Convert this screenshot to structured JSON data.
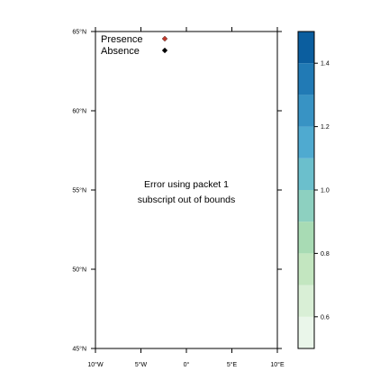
{
  "chart_data": {
    "type": "scatter",
    "xlim": [
      -10,
      10
    ],
    "ylim": [
      45,
      65
    ],
    "x_ticks": [
      {
        "value": -10,
        "label": "10°W"
      },
      {
        "value": -5,
        "label": "5°W"
      },
      {
        "value": 0,
        "label": "0°"
      },
      {
        "value": 5,
        "label": "5°E"
      },
      {
        "value": 10,
        "label": "10°E"
      }
    ],
    "y_ticks": [
      {
        "value": 45,
        "label": "45°N"
      },
      {
        "value": 50,
        "label": "50°N"
      },
      {
        "value": 55,
        "label": "55°N"
      },
      {
        "value": 60,
        "label": "60°N"
      },
      {
        "value": 65,
        "label": "65°N"
      }
    ],
    "legend": {
      "placement": "top-left",
      "items": [
        {
          "label": "Presence",
          "color": "#c0392b"
        },
        {
          "label": "Absence",
          "color": "#000000"
        }
      ]
    },
    "message": [
      "Error using packet 1",
      "subscript out of bounds"
    ],
    "colorbar": {
      "range": [
        0.5,
        1.5
      ],
      "ticks": [
        0.6,
        0.8,
        1.0,
        1.2,
        1.4
      ],
      "tick_labels": [
        "0.6",
        "0.8",
        "1.0",
        "1.2",
        "1.4"
      ],
      "bins": [
        {
          "from": 0.5,
          "to": 0.6,
          "color": "#eaf6ea"
        },
        {
          "from": 0.6,
          "to": 0.7,
          "color": "#d9efd6"
        },
        {
          "from": 0.7,
          "to": 0.8,
          "color": "#c3e6c0"
        },
        {
          "from": 0.8,
          "to": 0.9,
          "color": "#a8dbb4"
        },
        {
          "from": 0.9,
          "to": 1.0,
          "color": "#8dd0c0"
        },
        {
          "from": 1.0,
          "to": 1.1,
          "color": "#6bbfcc"
        },
        {
          "from": 1.1,
          "to": 1.2,
          "color": "#4faad0"
        },
        {
          "from": 1.2,
          "to": 1.3,
          "color": "#3893c4"
        },
        {
          "from": 1.3,
          "to": 1.4,
          "color": "#217ab5"
        },
        {
          "from": 1.4,
          "to": 1.5,
          "color": "#0b5e9f"
        }
      ]
    }
  }
}
